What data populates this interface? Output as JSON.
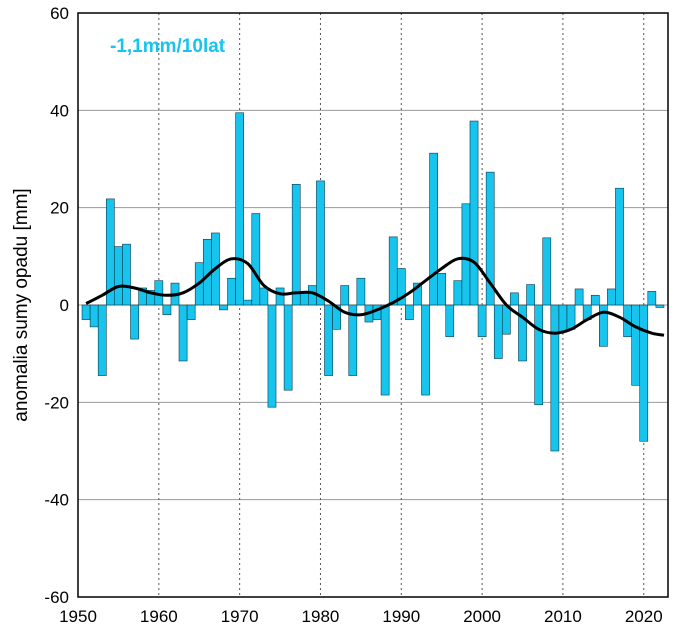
{
  "chart_data": {
    "type": "bar",
    "ylabel": "anomalia sumy opadu [mm]",
    "annotation": "-1,1mm/10lat",
    "ylim": [
      -60,
      60
    ],
    "xlim": [
      1950,
      2023
    ],
    "yticks": [
      60,
      40,
      20,
      0,
      -20,
      -40,
      -60
    ],
    "xticks": [
      1950,
      1960,
      1970,
      1980,
      1990,
      2000,
      2010,
      2020
    ],
    "grid": "horizontal solid gray, vertical dotted per decade",
    "colors": {
      "bars": "#16c4ee",
      "bar_edge": "#0d3a4a",
      "trend": "#000000",
      "annotation": "#16c4ee"
    },
    "series": [
      {
        "years": [
          1951,
          1952,
          1953,
          1954,
          1955,
          1956,
          1957,
          1958,
          1959,
          1960,
          1961,
          1962,
          1963,
          1964,
          1965,
          1966,
          1967,
          1968,
          1969,
          1970,
          1971,
          1972,
          1973,
          1974,
          1975,
          1976,
          1977,
          1978,
          1979,
          1980,
          1981,
          1982,
          1983,
          1984,
          1985,
          1986,
          1987,
          1988,
          1989,
          1990,
          1991,
          1992,
          1993,
          1994,
          1995,
          1996,
          1997,
          1998,
          1999,
          2000,
          2001,
          2002,
          2003,
          2004,
          2005,
          2006,
          2007,
          2008,
          2009,
          2010,
          2011,
          2012,
          2013,
          2014,
          2015,
          2016,
          2017,
          2018,
          2019,
          2020,
          2021,
          2022
        ],
        "values": [
          -3,
          -4.5,
          -14.5,
          21.8,
          12,
          12.5,
          -7,
          3.5,
          3,
          5,
          -2,
          4.5,
          -11.5,
          -3,
          8.7,
          13.5,
          14.8,
          -1,
          5.5,
          39.5,
          1,
          18.8,
          3.5,
          -21,
          3.5,
          -17.5,
          24.8,
          2.5,
          4,
          25.5,
          -14.5,
          -5,
          4,
          -14.5,
          5.5,
          -3.5,
          -3,
          -18.5,
          14,
          7.5,
          -3,
          4.5,
          -18.5,
          31.2,
          6.5,
          -6.5,
          5,
          20.8,
          37.8,
          -6.5,
          27.3,
          -11,
          -6,
          2.5,
          -11.5,
          4.2,
          -20.5,
          13.8,
          -30,
          -5.5,
          -5,
          3.3,
          -3,
          2,
          -8.5,
          3.3,
          24,
          -6.5,
          -16.5,
          -28,
          2.8,
          -0.5
        ]
      },
      {
        "name": "trend",
        "x": [
          1951,
          1953,
          1955,
          1957,
          1959,
          1961,
          1963,
          1965,
          1967,
          1969,
          1971,
          1973,
          1975,
          1977,
          1979,
          1981,
          1983,
          1985,
          1987,
          1989,
          1991,
          1993,
          1995,
          1997,
          1999,
          2001,
          2003,
          2005,
          2007,
          2009,
          2011,
          2013,
          2015,
          2017,
          2019,
          2021,
          2022.5
        ],
        "values": [
          0.3,
          2,
          3.8,
          3.5,
          2.5,
          2,
          2.5,
          4.5,
          7.5,
          9.5,
          8.5,
          4,
          2.3,
          2.5,
          2.5,
          0.8,
          -1.5,
          -2,
          -1,
          0.5,
          2.5,
          5,
          7.5,
          9.5,
          8.8,
          4.5,
          0,
          -2.5,
          -5,
          -5.8,
          -5,
          -3,
          -1.5,
          -2.5,
          -4.5,
          -5.8,
          -6.2
        ]
      }
    ]
  }
}
